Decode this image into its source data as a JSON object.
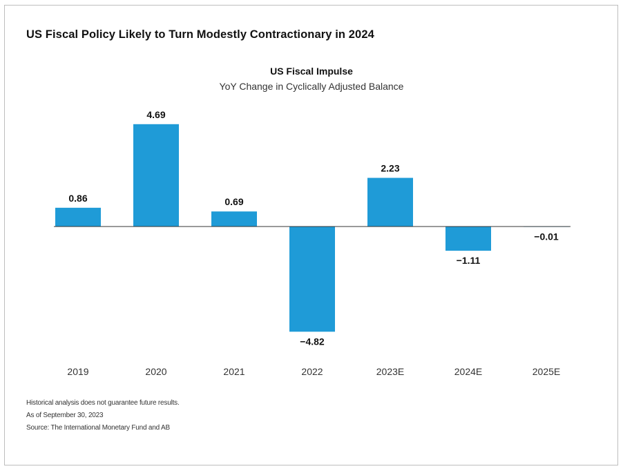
{
  "header": {
    "title": "US Fiscal Policy Likely to Turn Modestly Contractionary in 2024"
  },
  "chart_data": {
    "type": "bar",
    "title": "US Fiscal Impulse",
    "subtitle": "YoY Change in Cyclically Adjusted Balance",
    "categories": [
      "2019",
      "2020",
      "2021",
      "2022",
      "2023E",
      "2024E",
      "2025E"
    ],
    "values": [
      0.86,
      4.69,
      0.69,
      -4.82,
      2.23,
      -1.11,
      -0.01
    ],
    "value_labels": [
      "0.86",
      "4.69",
      "0.69",
      "−4.82",
      "2.23",
      "−1.11",
      "−0.01"
    ],
    "xlabel": "",
    "ylabel": "",
    "grid": false,
    "bar_color": "#1f9bd7"
  },
  "footnotes": [
    "Historical analysis does not guarantee future results.",
    "As of September 30, 2023",
    "Source: The International Monetary Fund and AB"
  ]
}
